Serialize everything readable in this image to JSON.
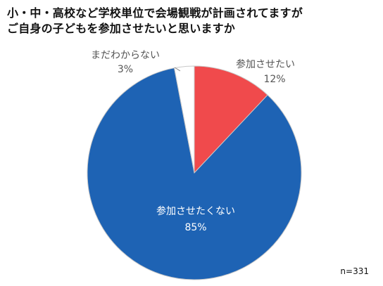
{
  "title_lines": [
    "小・中・高校など学校単位で会場観戦が計画されてますが",
    "ご自身の子どもを参加させたいと思いますか"
  ],
  "sample_size": "n=331",
  "chart_data": {
    "type": "pie",
    "start_angle_deg": 0,
    "direction": "clockwise",
    "slices": [
      {
        "name": "参加させたい",
        "value": 12,
        "value_label": "12%",
        "color": "#f04a4c"
      },
      {
        "name": "参加させたくない",
        "value": 85,
        "value_label": "85%",
        "color": "#1e63b4"
      },
      {
        "name": "まだわからない",
        "value": 3,
        "value_label": "3%",
        "color": "#ffffff"
      }
    ],
    "slice_border_color": "#c8c8c8",
    "label_colors": {
      "outside": "#555555",
      "inside": "#ffffff"
    }
  }
}
